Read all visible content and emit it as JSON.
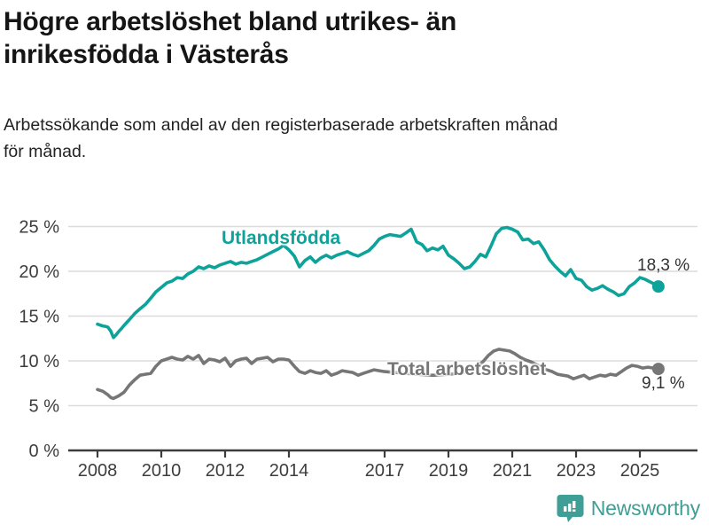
{
  "header": {
    "title_line1": "Högre arbetslöshet bland utrikes- än",
    "title_line2": "inrikesfödda i Västerås",
    "subtitle_line1": "Arbetssökande som andel av den registerbaserade arbetskraften månad",
    "subtitle_line2": "för månad."
  },
  "footer": {
    "brand": "Newsworthy",
    "logo_icon": "bar-chart-speech-bubble-icon"
  },
  "colors": {
    "accent_teal": "#0ea39a",
    "series_total_gray": "#767676",
    "gridline": "#dcdcdc",
    "axis": "#3c3c3c",
    "tick_text": "#3d3d3d",
    "brand_teal": "#3f9e96"
  },
  "chart_data": {
    "type": "line",
    "title": "Högre arbetslöshet bland utrikes- än inrikesfödda i Västerås",
    "subtitle": "Arbetssökande som andel av den registerbaserade arbetskraften månad för månad.",
    "xlabel": "",
    "ylabel": "",
    "ylim": [
      0,
      25
    ],
    "xlim": [
      2007.1,
      2026.8
    ],
    "grid": "horizontal",
    "legend_position": "inline-labels-on-lines",
    "y_ticks": [
      {
        "value": 0,
        "label": "0 %"
      },
      {
        "value": 5,
        "label": "5 %"
      },
      {
        "value": 10,
        "label": "10 %"
      },
      {
        "value": 15,
        "label": "15 %"
      },
      {
        "value": 20,
        "label": "20 %"
      },
      {
        "value": 25,
        "label": "25 %"
      }
    ],
    "x_ticks": [
      {
        "value": 2008,
        "label": "2008"
      },
      {
        "value": 2010,
        "label": "2010"
      },
      {
        "value": 2012,
        "label": "2012"
      },
      {
        "value": 2014,
        "label": "2014"
      },
      {
        "value": 2017,
        "label": "2017"
      },
      {
        "value": 2019,
        "label": "2019"
      },
      {
        "value": 2021,
        "label": "2021"
      },
      {
        "value": 2023,
        "label": "2023"
      },
      {
        "value": 2025,
        "label": "2025"
      }
    ],
    "series": [
      {
        "name": "Utlandsfödda",
        "color": "#0ea39a",
        "end_value": 18.3,
        "end_label": "18,3 %",
        "data": [
          [
            2008.0,
            14.1
          ],
          [
            2008.08,
            14.0
          ],
          [
            2008.17,
            13.9
          ],
          [
            2008.25,
            13.85
          ],
          [
            2008.33,
            13.75
          ],
          [
            2008.42,
            13.3
          ],
          [
            2008.5,
            12.6
          ],
          [
            2008.58,
            12.9
          ],
          [
            2008.67,
            13.3
          ],
          [
            2008.75,
            13.6
          ],
          [
            2008.83,
            13.95
          ],
          [
            2008.92,
            14.3
          ],
          [
            2009.0,
            14.6
          ],
          [
            2009.17,
            15.3
          ],
          [
            2009.33,
            15.8
          ],
          [
            2009.5,
            16.3
          ],
          [
            2009.67,
            17.0
          ],
          [
            2009.83,
            17.7
          ],
          [
            2010.0,
            18.2
          ],
          [
            2010.17,
            18.7
          ],
          [
            2010.33,
            18.9
          ],
          [
            2010.5,
            19.3
          ],
          [
            2010.67,
            19.2
          ],
          [
            2010.83,
            19.7
          ],
          [
            2011.0,
            20.0
          ],
          [
            2011.17,
            20.5
          ],
          [
            2011.33,
            20.3
          ],
          [
            2011.5,
            20.6
          ],
          [
            2011.67,
            20.4
          ],
          [
            2011.83,
            20.7
          ],
          [
            2012.0,
            20.9
          ],
          [
            2012.17,
            21.1
          ],
          [
            2012.33,
            20.8
          ],
          [
            2012.5,
            21.0
          ],
          [
            2012.67,
            20.9
          ],
          [
            2012.83,
            21.1
          ],
          [
            2013.0,
            21.3
          ],
          [
            2013.17,
            21.6
          ],
          [
            2013.33,
            21.9
          ],
          [
            2013.5,
            22.2
          ],
          [
            2013.67,
            22.5
          ],
          [
            2013.83,
            22.9
          ],
          [
            2014.0,
            22.4
          ],
          [
            2014.17,
            21.7
          ],
          [
            2014.33,
            20.5
          ],
          [
            2014.5,
            21.2
          ],
          [
            2014.67,
            21.6
          ],
          [
            2014.83,
            21.0
          ],
          [
            2015.0,
            21.5
          ],
          [
            2015.17,
            21.8
          ],
          [
            2015.33,
            21.5
          ],
          [
            2015.5,
            21.8
          ],
          [
            2015.67,
            22.0
          ],
          [
            2015.83,
            22.2
          ],
          [
            2016.0,
            21.9
          ],
          [
            2016.17,
            21.7
          ],
          [
            2016.33,
            22.0
          ],
          [
            2016.5,
            22.3
          ],
          [
            2016.67,
            22.9
          ],
          [
            2016.83,
            23.6
          ],
          [
            2017.0,
            23.9
          ],
          [
            2017.17,
            24.1
          ],
          [
            2017.33,
            24.0
          ],
          [
            2017.5,
            23.9
          ],
          [
            2017.67,
            24.3
          ],
          [
            2017.83,
            24.7
          ],
          [
            2017.92,
            24.0
          ],
          [
            2018.0,
            23.3
          ],
          [
            2018.17,
            23.0
          ],
          [
            2018.33,
            22.3
          ],
          [
            2018.5,
            22.6
          ],
          [
            2018.67,
            22.4
          ],
          [
            2018.83,
            22.8
          ],
          [
            2019.0,
            21.8
          ],
          [
            2019.17,
            21.4
          ],
          [
            2019.33,
            20.9
          ],
          [
            2019.5,
            20.3
          ],
          [
            2019.67,
            20.5
          ],
          [
            2019.83,
            21.1
          ],
          [
            2020.0,
            21.9
          ],
          [
            2020.17,
            21.6
          ],
          [
            2020.33,
            22.8
          ],
          [
            2020.5,
            24.2
          ],
          [
            2020.67,
            24.8
          ],
          [
            2020.83,
            24.9
          ],
          [
            2021.0,
            24.7
          ],
          [
            2021.17,
            24.4
          ],
          [
            2021.33,
            23.5
          ],
          [
            2021.5,
            23.6
          ],
          [
            2021.67,
            23.1
          ],
          [
            2021.83,
            23.3
          ],
          [
            2022.0,
            22.4
          ],
          [
            2022.17,
            21.3
          ],
          [
            2022.33,
            20.6
          ],
          [
            2022.5,
            20.0
          ],
          [
            2022.67,
            19.5
          ],
          [
            2022.83,
            20.2
          ],
          [
            2023.0,
            19.2
          ],
          [
            2023.17,
            19.0
          ],
          [
            2023.33,
            18.3
          ],
          [
            2023.5,
            17.9
          ],
          [
            2023.67,
            18.1
          ],
          [
            2023.83,
            18.4
          ],
          [
            2024.0,
            18.0
          ],
          [
            2024.17,
            17.7
          ],
          [
            2024.33,
            17.3
          ],
          [
            2024.5,
            17.5
          ],
          [
            2024.67,
            18.3
          ],
          [
            2024.83,
            18.7
          ],
          [
            2025.0,
            19.3
          ],
          [
            2025.17,
            19.1
          ],
          [
            2025.33,
            18.8
          ],
          [
            2025.5,
            18.5
          ],
          [
            2025.58,
            18.3
          ]
        ]
      },
      {
        "name": "Total arbetslöshet",
        "color": "#767676",
        "end_value": 9.1,
        "end_label": "9,1 %",
        "data": [
          [
            2008.0,
            6.8
          ],
          [
            2008.17,
            6.6
          ],
          [
            2008.33,
            6.2
          ],
          [
            2008.42,
            5.9
          ],
          [
            2008.5,
            5.8
          ],
          [
            2008.67,
            6.1
          ],
          [
            2008.83,
            6.5
          ],
          [
            2009.0,
            7.3
          ],
          [
            2009.17,
            7.9
          ],
          [
            2009.33,
            8.4
          ],
          [
            2009.5,
            8.5
          ],
          [
            2009.67,
            8.6
          ],
          [
            2009.83,
            9.4
          ],
          [
            2010.0,
            10.0
          ],
          [
            2010.17,
            10.2
          ],
          [
            2010.33,
            10.4
          ],
          [
            2010.5,
            10.2
          ],
          [
            2010.67,
            10.1
          ],
          [
            2010.83,
            10.5
          ],
          [
            2011.0,
            10.2
          ],
          [
            2011.17,
            10.6
          ],
          [
            2011.33,
            9.7
          ],
          [
            2011.5,
            10.2
          ],
          [
            2011.67,
            10.1
          ],
          [
            2011.83,
            9.9
          ],
          [
            2012.0,
            10.3
          ],
          [
            2012.17,
            9.4
          ],
          [
            2012.33,
            10.0
          ],
          [
            2012.5,
            10.2
          ],
          [
            2012.67,
            10.3
          ],
          [
            2012.83,
            9.7
          ],
          [
            2013.0,
            10.2
          ],
          [
            2013.17,
            10.3
          ],
          [
            2013.33,
            10.4
          ],
          [
            2013.5,
            9.9
          ],
          [
            2013.67,
            10.2
          ],
          [
            2013.83,
            10.2
          ],
          [
            2014.0,
            10.1
          ],
          [
            2014.17,
            9.4
          ],
          [
            2014.33,
            8.8
          ],
          [
            2014.5,
            8.6
          ],
          [
            2014.67,
            8.9
          ],
          [
            2014.83,
            8.7
          ],
          [
            2015.0,
            8.6
          ],
          [
            2015.17,
            8.9
          ],
          [
            2015.33,
            8.4
          ],
          [
            2015.5,
            8.6
          ],
          [
            2015.67,
            8.9
          ],
          [
            2015.83,
            8.8
          ],
          [
            2016.0,
            8.7
          ],
          [
            2016.17,
            8.4
          ],
          [
            2016.33,
            8.6
          ],
          [
            2016.5,
            8.8
          ],
          [
            2016.67,
            9.0
          ],
          [
            2016.83,
            8.9
          ],
          [
            2017.0,
            8.8
          ],
          [
            2017.33,
            8.7
          ],
          [
            2017.67,
            8.6
          ],
          [
            2018.0,
            8.5
          ],
          [
            2018.33,
            8.4
          ],
          [
            2018.67,
            8.4
          ],
          [
            2019.0,
            8.5
          ],
          [
            2019.33,
            8.6
          ],
          [
            2019.67,
            8.9
          ],
          [
            2019.92,
            9.5
          ],
          [
            2020.08,
            9.9
          ],
          [
            2020.25,
            10.6
          ],
          [
            2020.42,
            11.1
          ],
          [
            2020.58,
            11.3
          ],
          [
            2020.75,
            11.2
          ],
          [
            2020.92,
            11.1
          ],
          [
            2021.08,
            10.8
          ],
          [
            2021.25,
            10.4
          ],
          [
            2021.42,
            10.1
          ],
          [
            2021.58,
            9.9
          ],
          [
            2021.75,
            9.6
          ],
          [
            2021.92,
            9.3
          ],
          [
            2022.08,
            9.0
          ],
          [
            2022.25,
            8.8
          ],
          [
            2022.42,
            8.5
          ],
          [
            2022.58,
            8.4
          ],
          [
            2022.75,
            8.3
          ],
          [
            2022.92,
            8.0
          ],
          [
            2023.08,
            8.2
          ],
          [
            2023.25,
            8.4
          ],
          [
            2023.42,
            8.0
          ],
          [
            2023.58,
            8.2
          ],
          [
            2023.75,
            8.4
          ],
          [
            2023.92,
            8.3
          ],
          [
            2024.08,
            8.5
          ],
          [
            2024.25,
            8.4
          ],
          [
            2024.42,
            8.8
          ],
          [
            2024.58,
            9.2
          ],
          [
            2024.75,
            9.5
          ],
          [
            2024.92,
            9.4
          ],
          [
            2025.08,
            9.2
          ],
          [
            2025.25,
            9.3
          ],
          [
            2025.42,
            9.2
          ],
          [
            2025.58,
            9.1
          ]
        ]
      }
    ]
  }
}
